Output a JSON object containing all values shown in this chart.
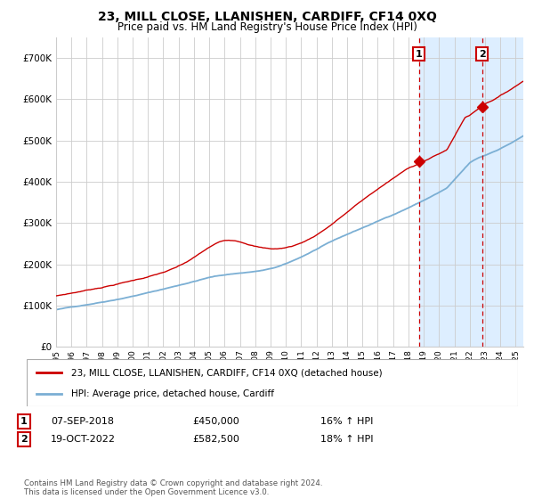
{
  "title": "23, MILL CLOSE, LLANISHEN, CARDIFF, CF14 0XQ",
  "subtitle": "Price paid vs. HM Land Registry's House Price Index (HPI)",
  "title_fontsize": 10,
  "subtitle_fontsize": 8.5,
  "xlim_start": 1995.0,
  "xlim_end": 2025.5,
  "ylim": [
    0,
    750000
  ],
  "red_line_color": "#cc0000",
  "blue_line_color": "#7bafd4",
  "shade_color": "#ddeeff",
  "grid_color": "#cccccc",
  "vline_color": "#cc0000",
  "marker1_x": 2018.69,
  "marker1_y": 450000,
  "marker2_x": 2022.8,
  "marker2_y": 582500,
  "sale1_date": "07-SEP-2018",
  "sale1_price": "£450,000",
  "sale1_hpi": "16% ↑ HPI",
  "sale2_date": "19-OCT-2022",
  "sale2_price": "£582,500",
  "sale2_hpi": "18% ↑ HPI",
  "legend_label1": "23, MILL CLOSE, LLANISHEN, CARDIFF, CF14 0XQ (detached house)",
  "legend_label2": "HPI: Average price, detached house, Cardiff",
  "footer": "Contains HM Land Registry data © Crown copyright and database right 2024.\nThis data is licensed under the Open Government Licence v3.0."
}
